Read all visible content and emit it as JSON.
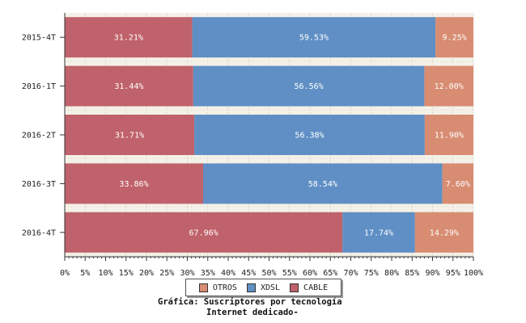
{
  "chart_data": {
    "type": "bar",
    "orientation": "horizontal",
    "stacked": true,
    "categories": [
      "2015-4T",
      "2016-1T",
      "2016-2T",
      "2016-3T",
      "2016-4T"
    ],
    "series": [
      {
        "name": "CABLE",
        "color": "#c0626b",
        "values": [
          31.21,
          31.44,
          31.71,
          33.86,
          67.96
        ]
      },
      {
        "name": "XDSL",
        "color": "#5f8fc4",
        "values": [
          59.53,
          56.56,
          56.38,
          58.54,
          17.74
        ]
      },
      {
        "name": "OTROS",
        "color": "#d88c72",
        "values": [
          9.25,
          12.0,
          11.9,
          7.6,
          14.29
        ]
      }
    ],
    "data_labels": [
      [
        "31.21%",
        "59.53%",
        "9.25%"
      ],
      [
        "31.44%",
        "56.56%",
        "12.00%"
      ],
      [
        "31.71%",
        "56.38%",
        "11.90%"
      ],
      [
        "33.86%",
        "58.54%",
        "7.60%"
      ],
      [
        "67.96%",
        "17.74%",
        "14.29%"
      ]
    ],
    "xlim": [
      0,
      100
    ],
    "xticks": [
      "0%",
      "5%",
      "10%",
      "15%",
      "20%",
      "25%",
      "30%",
      "35%",
      "40%",
      "45%",
      "50%",
      "55%",
      "60%",
      "65%",
      "70%",
      "75%",
      "80%",
      "85%",
      "90%",
      "95%",
      "100%"
    ],
    "grid": true,
    "legend_position": "bottom-center"
  },
  "legend": {
    "items": [
      {
        "label": "OTROS",
        "color": "#d88c72"
      },
      {
        "label": "XDSL",
        "color": "#5f8fc4"
      },
      {
        "label": "CABLE",
        "color": "#c0626b"
      }
    ]
  },
  "caption": {
    "line1": "Gráfica: Suscriptores por tecnología",
    "line2": "Internet dedicado-"
  }
}
